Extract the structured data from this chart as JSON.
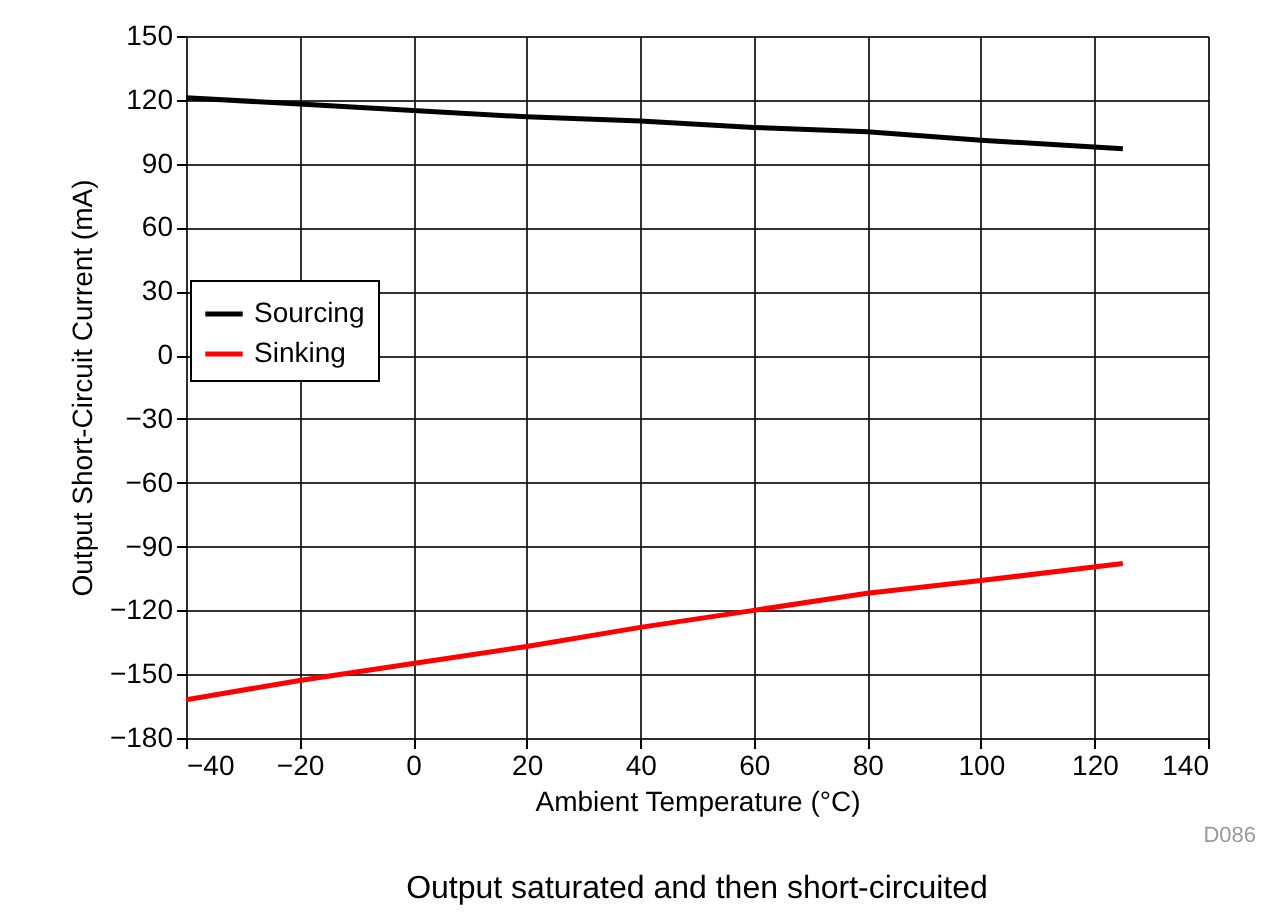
{
  "chart_data": {
    "type": "line",
    "xlabel": "Ambient Temperature (°C)",
    "ylabel": "Output Short-Circuit Current (mA)",
    "x": [
      -40,
      -20,
      0,
      20,
      40,
      60,
      80,
      100,
      125
    ],
    "series": [
      {
        "name": "Sourcing",
        "color": "#000000",
        "values": [
          121,
          118,
          115,
          112,
          110,
          107,
          105,
          101,
          97
        ]
      },
      {
        "name": "Sinking",
        "color": "#ff0000",
        "values": [
          -162,
          -153,
          -145,
          -137,
          -128,
          -120,
          -112,
          -106,
          -98
        ]
      }
    ],
    "xlim": [
      -40,
      140
    ],
    "xticks": [
      -40,
      -20,
      0,
      20,
      40,
      60,
      80,
      100,
      120,
      140
    ],
    "ylim": [
      -180,
      150
    ],
    "yticks": [
      -180,
      -150,
      -120,
      -90,
      -60,
      -30,
      0,
      30,
      60,
      90,
      120,
      150
    ],
    "grid": true,
    "legend": "left",
    "marker": "none",
    "line_style": "solid",
    "annotations": [
      "D086",
      "Output saturated and then short-circuited"
    ]
  }
}
